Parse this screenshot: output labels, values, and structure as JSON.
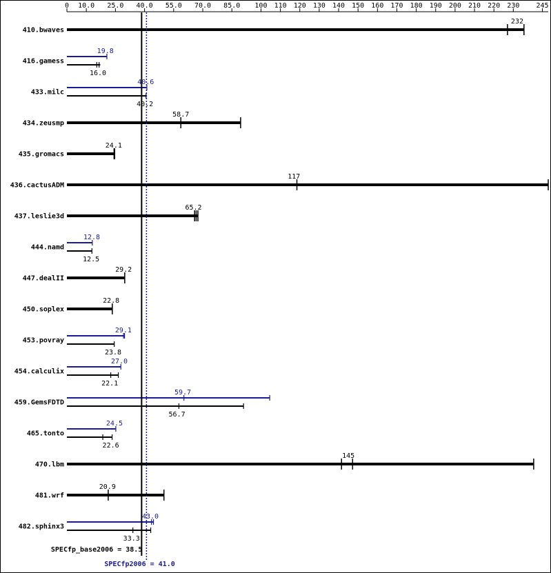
{
  "chart_data": {
    "type": "bar",
    "orientation": "horizontal",
    "xlim": [
      0,
      248
    ],
    "ticks": [
      {
        "v": 0,
        "label": "0"
      },
      {
        "v": 10,
        "label": "10.0"
      },
      {
        "v": 25,
        "label": "25.0"
      },
      {
        "v": 40,
        "label": "40.0"
      },
      {
        "v": 55,
        "label": "55.0"
      },
      {
        "v": 70,
        "label": "70.0"
      },
      {
        "v": 85,
        "label": "85.0"
      },
      {
        "v": 100,
        "label": "100"
      },
      {
        "v": 110,
        "label": "110"
      },
      {
        "v": 120,
        "label": "120"
      },
      {
        "v": 130,
        "label": "130"
      },
      {
        "v": 140,
        "label": "140"
      },
      {
        "v": 150,
        "label": "150"
      },
      {
        "v": 160,
        "label": "160"
      },
      {
        "v": 170,
        "label": "170"
      },
      {
        "v": 180,
        "label": "180"
      },
      {
        "v": 190,
        "label": "190"
      },
      {
        "v": 200,
        "label": "200"
      },
      {
        "v": 210,
        "label": "210"
      },
      {
        "v": 220,
        "label": "220"
      },
      {
        "v": 230,
        "label": "230"
      },
      {
        "v": 245,
        "label": "245"
      }
    ],
    "colors": {
      "base": "#000000",
      "peak": "#1a1a99"
    },
    "benchmarks": [
      {
        "name": "410.bwaves",
        "base": 232,
        "base_label": "232",
        "base_end": 235.5,
        "base_runs": [
          227,
          235.5
        ]
      },
      {
        "name": "416.gamess",
        "base": 16.0,
        "base_label": "16.0",
        "base_end": 17.2,
        "base_runs": [
          15.4,
          16.6
        ],
        "peak": 19.8,
        "peak_label": "19.8",
        "peak_end": 20.6,
        "peak_runs": [
          20.6
        ]
      },
      {
        "name": "433.milc",
        "base": 40.2,
        "base_label": "40.2",
        "base_end": 40.8,
        "base_runs": [
          40.8
        ],
        "peak": 40.6,
        "peak_label": "40.6",
        "peak_end": 41.2,
        "peak_runs": [
          41.2
        ]
      },
      {
        "name": "434.zeusmp",
        "base": 58.7,
        "base_label": "58.7",
        "base_end": 89.5,
        "base_runs": [
          58.7,
          89.5
        ]
      },
      {
        "name": "435.gromacs",
        "base": 24.1,
        "base_label": "24.1",
        "base_end": 24.6,
        "base_runs": [
          24.3,
          24.6
        ]
      },
      {
        "name": "436.cactusADM",
        "base": 117,
        "base_label": "117",
        "base_end": 248,
        "base_runs": [
          118.5,
          248
        ]
      },
      {
        "name": "437.leslie3d",
        "base": 65.2,
        "base_label": "65.2",
        "base_end": 67.5,
        "base_runs": [
          65.8,
          66.6,
          67.5
        ]
      },
      {
        "name": "444.namd",
        "base": 12.5,
        "base_label": "12.5",
        "base_end": 12.9,
        "base_runs": [
          12.9
        ],
        "peak": 12.8,
        "peak_label": "12.8",
        "peak_end": 13.1,
        "peak_runs": [
          13.1
        ]
      },
      {
        "name": "447.dealII",
        "base": 29.2,
        "base_label": "29.2",
        "base_end": 29.8,
        "base_runs": [
          29.8
        ]
      },
      {
        "name": "450.soplex",
        "base": 22.8,
        "base_label": "22.8",
        "base_end": 23.4,
        "base_runs": [
          23.4
        ]
      },
      {
        "name": "453.povray",
        "base": 23.8,
        "base_label": "23.8",
        "base_end": 24.4,
        "base_runs": [
          24.4
        ],
        "peak": 29.1,
        "peak_label": "29.1",
        "peak_end": 29.7,
        "peak_runs": [
          29.2,
          29.7
        ]
      },
      {
        "name": "454.calculix",
        "base": 22.1,
        "base_label": "22.1",
        "base_end": 26.5,
        "base_runs": [
          22.6,
          26.5
        ],
        "peak": 27.0,
        "peak_label": "27.0",
        "peak_end": 27.8,
        "peak_runs": [
          27.8
        ]
      },
      {
        "name": "459.GemsFDTD",
        "base": 56.7,
        "base_label": "56.7",
        "base_end": 91,
        "base_runs": [
          57.7,
          91
        ],
        "peak": 59.7,
        "peak_label": "59.7",
        "peak_end": 104.5,
        "peak_runs": [
          60.3,
          104.5
        ]
      },
      {
        "name": "465.tonto",
        "base": 22.6,
        "base_label": "22.6",
        "base_end": 23.3,
        "base_runs": [
          18.5,
          23.3
        ],
        "peak": 24.5,
        "peak_label": "24.5",
        "peak_end": 25.2,
        "peak_runs": [
          25.2
        ]
      },
      {
        "name": "470.lbm",
        "base": 145,
        "base_label": "145",
        "base_end": 240.5,
        "base_runs": [
          141.5,
          147.2,
          240.5
        ]
      },
      {
        "name": "481.wrf",
        "base": 20.9,
        "base_label": "20.9",
        "base_end": 50,
        "base_runs": [
          21.3,
          50
        ]
      },
      {
        "name": "482.sphinx3",
        "base": 33.3,
        "base_label": "33.3",
        "base_end": 43.2,
        "base_runs": [
          34,
          43.2
        ],
        "peak": 43.0,
        "peak_label": "43.0",
        "peak_end": 44.6,
        "peak_runs": [
          43.6,
          44.6
        ]
      }
    ],
    "summary": {
      "base_value": 38.5,
      "base_text": "SPECfp_base2006 = 38.5",
      "peak_value": 41.0,
      "peak_text": "SPECfp2006 = 41.0"
    }
  }
}
